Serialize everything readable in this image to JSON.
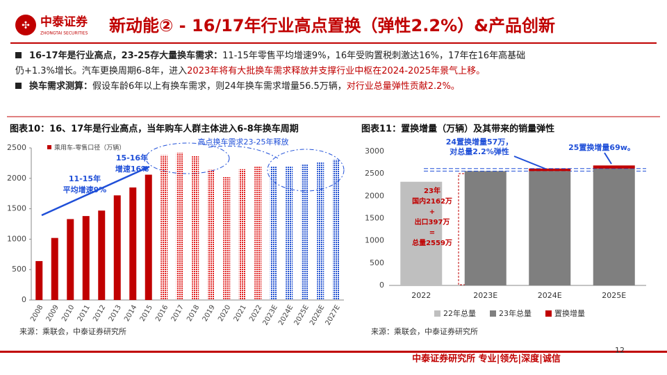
{
  "header": {
    "logo": "中泰证券",
    "logo_en": "ZHONGTAI SECURITIES",
    "title": "新动能② - 16/17年行业高点置换（弹性2.2%）&产品创新"
  },
  "bullets": [
    {
      "lines": [
        [
          {
            "t": "16-17年是行业高点，23-25存大量换车需求：",
            "s": "bold"
          },
          {
            "t": "11-15年零售平均增速9%，16年受购置税刺激达16%，17年在16年高基础",
            "s": "normal"
          }
        ],
        [
          {
            "t": "仍+1.3%增长。汽车更换周期6-8年，进入",
            "s": "normal"
          },
          {
            "t": "2023年将有大批换车需求释放并支撑行业中枢在2024-2025年景气上移。",
            "s": "red"
          }
        ]
      ]
    },
    {
      "lines": [
        [
          {
            "t": "换车需求测算：",
            "s": "bold"
          },
          {
            "t": "假设车龄6年以上有换车需求，则24年换车需求增量56.5万辆，",
            "s": "normal"
          },
          {
            "t": "对行业总量弹性贡献2.2%。",
            "s": "red"
          }
        ]
      ]
    }
  ],
  "chart_data": [
    {
      "type": "bar",
      "title": "图表10：16、17年是行业高点，当年购车人群主体进入6-8年换车周期",
      "categories": [
        "2008",
        "2009",
        "2010",
        "2011",
        "2012",
        "2013",
        "2014",
        "2015",
        "2016",
        "2017",
        "2018",
        "2019",
        "2020",
        "2021",
        "2022",
        "2023E",
        "2024E",
        "2025E",
        "2026E",
        "2027E"
      ],
      "series": [
        {
          "name": "乘用车-零售口径（万辆）",
          "color": "#c00000",
          "colors": [
            "#c00000",
            "#c00000",
            "#c00000",
            "#c00000",
            "#c00000",
            "#c00000",
            "#c00000",
            "#c00000",
            "#e02020",
            "#e02020",
            "#e02020",
            "#e02020",
            "#e02020",
            "#e02020",
            "#e02020",
            "#2050d0",
            "#2050d0",
            "#2050d0",
            "#2050d0",
            "#2050d0"
          ],
          "values": [
            640,
            1020,
            1330,
            1380,
            1470,
            1720,
            1850,
            2060,
            2380,
            2420,
            2370,
            2140,
            2020,
            2150,
            2200,
            2200,
            2200,
            2230,
            2260,
            2310
          ]
        }
      ],
      "ylim": [
        0,
        2500
      ],
      "yticks": [
        0,
        500,
        1000,
        1500,
        2000,
        2500
      ],
      "annotations": [
        [
          "11-15年",
          "平均增速9%"
        ],
        [
          "15-16年",
          "增速16%"
        ],
        [
          "高点换车需求23-25年释放"
        ]
      ],
      "source": "来源：乘联会，中泰证券研究所"
    },
    {
      "type": "stacked_bar",
      "title": "图表11：置换增量（万辆）及其带来的销量弹性",
      "categories": [
        "2022",
        "2023E",
        "2024E",
        "2025E"
      ],
      "series": [
        {
          "name": "22年总量",
          "color": "#bfbfbf",
          "values": [
            2320,
            null,
            null,
            null
          ]
        },
        {
          "name": "23年总量",
          "color": "#7f7f7f",
          "values": [
            null,
            2559,
            2559,
            2616
          ]
        },
        {
          "name": "置换增量",
          "color": "#c00000",
          "values": [
            null,
            null,
            57,
            69
          ]
        }
      ],
      "ylim": [
        0,
        3000
      ],
      "yticks": [
        0,
        500,
        1000,
        1500,
        2000,
        2500,
        3000
      ],
      "annotations": [
        [
          "24置换增量57万，",
          "对总量2.2%弹性"
        ],
        [
          "25置换增量69w。"
        ],
        [
          "23年",
          "国内2162万",
          "+",
          "出口397万",
          "=",
          "总量2559万"
        ]
      ],
      "source": "来源：乘联会，中泰证券研究所"
    }
  ],
  "footer": {
    "text": "中泰证券研究所 专业|领先|深度|诚信",
    "page": "12"
  }
}
